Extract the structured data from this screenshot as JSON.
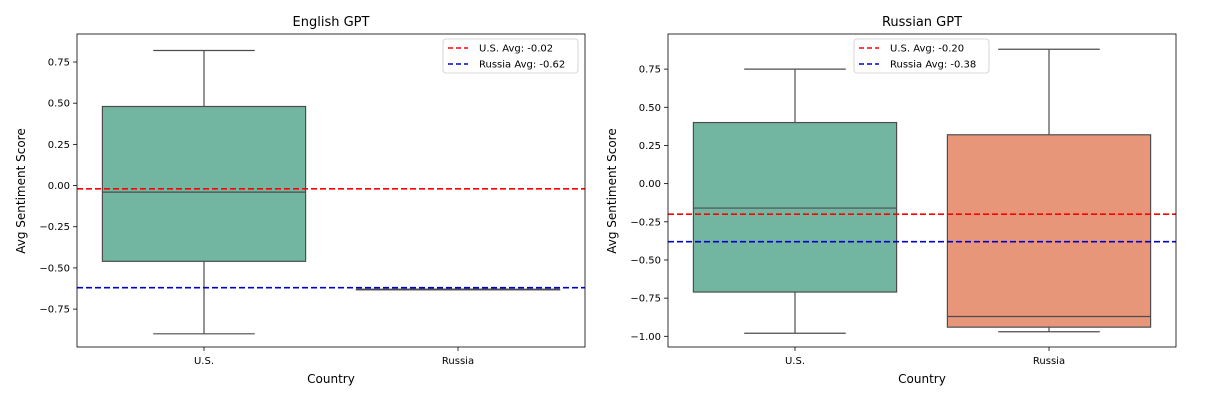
{
  "chart_data": [
    {
      "type": "box",
      "title": "English GPT",
      "xlabel": "Country",
      "ylabel": "Avg Sentiment Score",
      "categories": [
        "U.S.",
        "Russia"
      ],
      "ylim": [
        -0.98,
        0.92
      ],
      "yticks": [
        0.75,
        0.5,
        0.25,
        0.0,
        -0.25,
        -0.5,
        -0.75
      ],
      "ytick_labels": [
        "0.75",
        "0.50",
        "0.25",
        "0.00",
        "−0.25",
        "−0.50",
        "−0.75"
      ],
      "boxes": [
        {
          "category": "U.S.",
          "whisker_low": -0.9,
          "q1": -0.46,
          "median": -0.04,
          "q3": 0.48,
          "whisker_high": 0.82,
          "color": "#72b5a0"
        },
        {
          "category": "Russia",
          "whisker_low": -0.63,
          "q1": -0.63,
          "median": -0.63,
          "q3": -0.63,
          "whisker_high": -0.63,
          "color": "#e8967a"
        }
      ],
      "hlines": [
        {
          "label": "U.S. Avg: -0.02",
          "value": -0.02,
          "color": "#ff0000"
        },
        {
          "label": "Russia Avg: -0.62",
          "value": -0.62,
          "color": "#0000cc"
        }
      ],
      "legend_position": "upper right"
    },
    {
      "type": "box",
      "title": "Russian GPT",
      "xlabel": "Country",
      "ylabel": "Avg Sentiment Score",
      "categories": [
        "U.S.",
        "Russia"
      ],
      "ylim": [
        -1.07,
        0.98
      ],
      "yticks": [
        0.75,
        0.5,
        0.25,
        0.0,
        -0.25,
        -0.5,
        -0.75,
        -1.0
      ],
      "ytick_labels": [
        "0.75",
        "0.50",
        "0.25",
        "0.00",
        "−0.25",
        "−0.50",
        "−0.75",
        "−1.00"
      ],
      "boxes": [
        {
          "category": "U.S.",
          "whisker_low": -0.98,
          "q1": -0.71,
          "median": -0.16,
          "q3": 0.4,
          "whisker_high": 0.75,
          "color": "#72b5a0"
        },
        {
          "category": "Russia",
          "whisker_low": -0.97,
          "q1": -0.94,
          "median": -0.87,
          "q3": 0.32,
          "whisker_high": 0.88,
          "color": "#e8967a"
        }
      ],
      "hlines": [
        {
          "label": "U.S. Avg: -0.20",
          "value": -0.2,
          "color": "#ff0000"
        },
        {
          "label": "Russia Avg: -0.38",
          "value": -0.38,
          "color": "#0000cc"
        }
      ],
      "legend_position": "upper center"
    }
  ]
}
